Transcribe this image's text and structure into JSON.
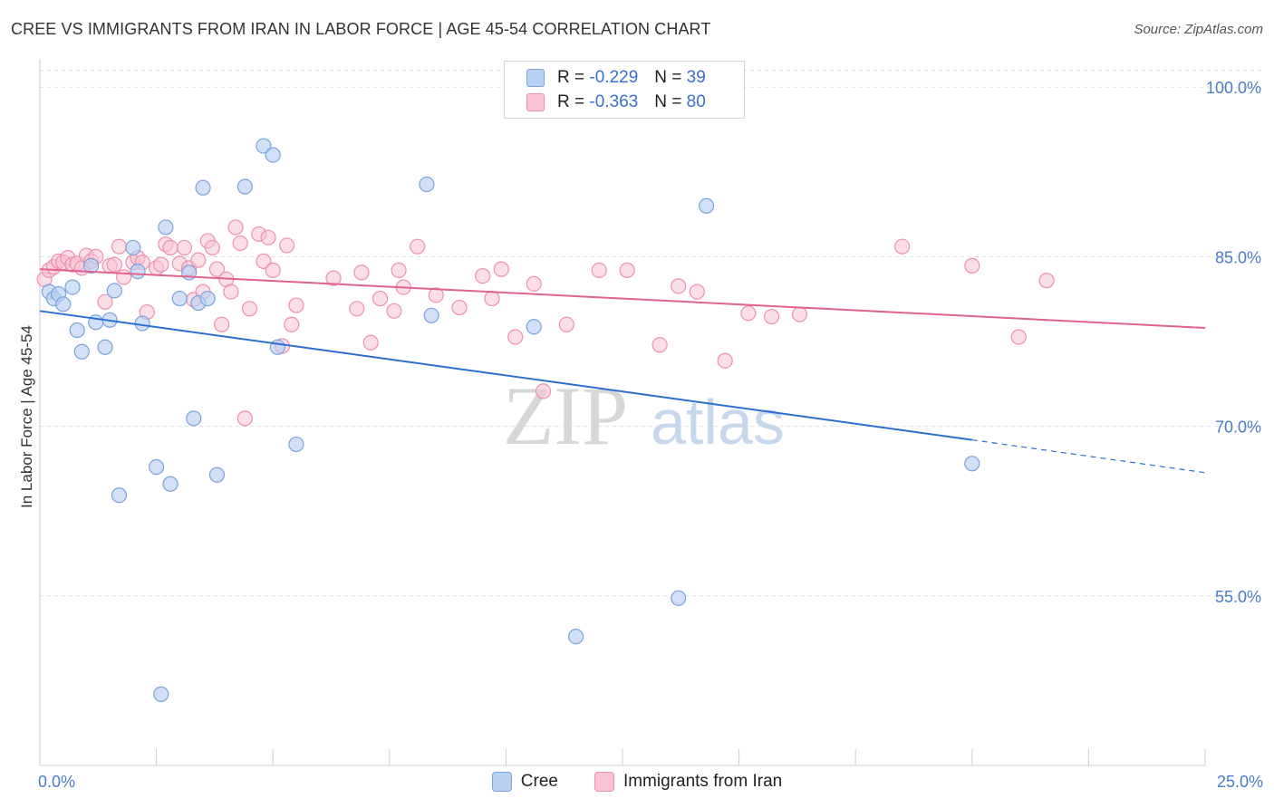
{
  "title": "CREE VS IMMIGRANTS FROM IRAN IN LABOR FORCE | AGE 45-54 CORRELATION CHART",
  "source": "Source: ZipAtlas.com",
  "legend": {
    "rows": [
      {
        "r_label": "R =",
        "r_value": "-0.229",
        "n_label": "N =",
        "n_value": "39"
      },
      {
        "r_label": "R =",
        "r_value": "-0.363",
        "n_label": "N =",
        "n_value": "80"
      }
    ]
  },
  "colors": {
    "cree_fill": "#b8d0f2",
    "cree_stroke": "#7aa3dc",
    "cree_line": "#2b6fd0",
    "iran_fill": "#f9c3d3",
    "iran_stroke": "#ee8fae",
    "iran_line": "#e0628f",
    "grid": "#dde1e6",
    "tick_text": "#4a7cc7"
  },
  "watermark": {
    "part1": "ZIP",
    "part2": "atlas"
  },
  "chart_data": {
    "type": "scatter",
    "title": "CREE VS IMMIGRANTS FROM IRAN IN LABOR FORCE | AGE 45-54 CORRELATION CHART",
    "xlabel": "",
    "ylabel": "In Labor Force | Age 45-54",
    "xlim": [
      0,
      25
    ],
    "ylim": [
      40,
      102.5
    ],
    "x_tick_labels": [
      "0.0%",
      "25.0%"
    ],
    "y_ticks": [
      55,
      70,
      85,
      100
    ],
    "y_tick_labels": [
      "55.0%",
      "70.0%",
      "85.0%",
      "100.0%"
    ],
    "grid": true,
    "legend_position": "top-center",
    "series": [
      {
        "name": "Cree",
        "r": -0.229,
        "n": 39,
        "trend": {
          "x0": 0,
          "y0": 80.2,
          "x1": 20,
          "y1": 68.8,
          "dashed_to_x": 25,
          "dashed_to_y": 65.9
        },
        "points": [
          [
            0.2,
            81.9
          ],
          [
            0.3,
            81.3
          ],
          [
            0.4,
            81.7
          ],
          [
            0.5,
            80.8
          ],
          [
            0.7,
            82.3
          ],
          [
            0.8,
            78.5
          ],
          [
            0.9,
            76.6
          ],
          [
            1.1,
            84.2
          ],
          [
            1.2,
            79.2
          ],
          [
            1.4,
            77.0
          ],
          [
            1.5,
            79.4
          ],
          [
            1.6,
            82.0
          ],
          [
            1.7,
            63.9
          ],
          [
            2.0,
            85.8
          ],
          [
            2.1,
            83.7
          ],
          [
            2.2,
            79.1
          ],
          [
            2.5,
            66.4
          ],
          [
            2.6,
            46.3
          ],
          [
            2.7,
            87.6
          ],
          [
            2.8,
            64.9
          ],
          [
            3.0,
            81.3
          ],
          [
            3.2,
            83.6
          ],
          [
            3.3,
            70.7
          ],
          [
            3.4,
            80.9
          ],
          [
            3.5,
            91.1
          ],
          [
            3.6,
            81.3
          ],
          [
            3.8,
            65.7
          ],
          [
            4.4,
            91.2
          ],
          [
            4.8,
            94.8
          ],
          [
            5.0,
            94.0
          ],
          [
            5.1,
            77.0
          ],
          [
            5.5,
            68.4
          ],
          [
            8.3,
            91.4
          ],
          [
            8.4,
            79.8
          ],
          [
            10.6,
            78.8
          ],
          [
            11.5,
            51.4
          ],
          [
            13.7,
            54.8
          ],
          [
            14.3,
            89.5
          ],
          [
            20.0,
            66.7
          ]
        ]
      },
      {
        "name": "Immigrants from Iran",
        "r": -0.363,
        "n": 80,
        "trend": {
          "x0": 0,
          "y0": 83.9,
          "x1": 25,
          "y1": 78.7
        },
        "points": [
          [
            0.1,
            83.0
          ],
          [
            0.2,
            83.8
          ],
          [
            0.3,
            84.1
          ],
          [
            0.4,
            84.6
          ],
          [
            0.5,
            84.5
          ],
          [
            0.6,
            84.9
          ],
          [
            0.7,
            84.3
          ],
          [
            0.8,
            84.4
          ],
          [
            0.9,
            84.0
          ],
          [
            1.0,
            85.1
          ],
          [
            1.1,
            84.6
          ],
          [
            1.2,
            85.0
          ],
          [
            1.4,
            81.0
          ],
          [
            1.5,
            84.2
          ],
          [
            1.6,
            84.3
          ],
          [
            1.7,
            85.9
          ],
          [
            1.8,
            83.2
          ],
          [
            2.0,
            84.5
          ],
          [
            2.1,
            84.9
          ],
          [
            2.2,
            84.5
          ],
          [
            2.3,
            80.1
          ],
          [
            2.5,
            84.0
          ],
          [
            2.6,
            84.3
          ],
          [
            2.7,
            86.1
          ],
          [
            2.8,
            85.8
          ],
          [
            3.0,
            84.4
          ],
          [
            3.1,
            85.8
          ],
          [
            3.2,
            84.0
          ],
          [
            3.3,
            81.2
          ],
          [
            3.4,
            84.7
          ],
          [
            3.5,
            81.9
          ],
          [
            3.6,
            86.4
          ],
          [
            3.7,
            85.8
          ],
          [
            3.8,
            83.9
          ],
          [
            3.9,
            79.0
          ],
          [
            4.0,
            83.0
          ],
          [
            4.1,
            81.9
          ],
          [
            4.2,
            87.6
          ],
          [
            4.3,
            86.2
          ],
          [
            4.4,
            70.7
          ],
          [
            4.5,
            80.4
          ],
          [
            4.7,
            87.0
          ],
          [
            4.8,
            84.6
          ],
          [
            4.9,
            86.7
          ],
          [
            5.0,
            83.8
          ],
          [
            5.2,
            77.1
          ],
          [
            5.3,
            86.0
          ],
          [
            5.4,
            79.0
          ],
          [
            5.5,
            80.7
          ],
          [
            6.3,
            83.1
          ],
          [
            6.8,
            80.4
          ],
          [
            6.9,
            83.6
          ],
          [
            7.1,
            77.4
          ],
          [
            7.3,
            81.3
          ],
          [
            7.6,
            80.2
          ],
          [
            7.7,
            83.8
          ],
          [
            7.8,
            82.3
          ],
          [
            8.1,
            85.9
          ],
          [
            8.5,
            81.6
          ],
          [
            9.0,
            80.5
          ],
          [
            9.5,
            83.3
          ],
          [
            9.7,
            81.3
          ],
          [
            9.9,
            83.9
          ],
          [
            10.2,
            77.9
          ],
          [
            10.6,
            82.6
          ],
          [
            10.8,
            73.1
          ],
          [
            11.3,
            79.0
          ],
          [
            12.0,
            83.8
          ],
          [
            12.6,
            83.8
          ],
          [
            13.3,
            77.2
          ],
          [
            13.7,
            82.4
          ],
          [
            14.1,
            81.9
          ],
          [
            14.7,
            75.8
          ],
          [
            15.2,
            80.0
          ],
          [
            15.7,
            79.7
          ],
          [
            16.3,
            79.9
          ],
          [
            18.5,
            85.9
          ],
          [
            20.0,
            84.2
          ],
          [
            21.0,
            77.9
          ],
          [
            21.6,
            82.9
          ]
        ]
      }
    ]
  },
  "bottom_legend": [
    "Cree",
    "Immigrants from Iran"
  ]
}
